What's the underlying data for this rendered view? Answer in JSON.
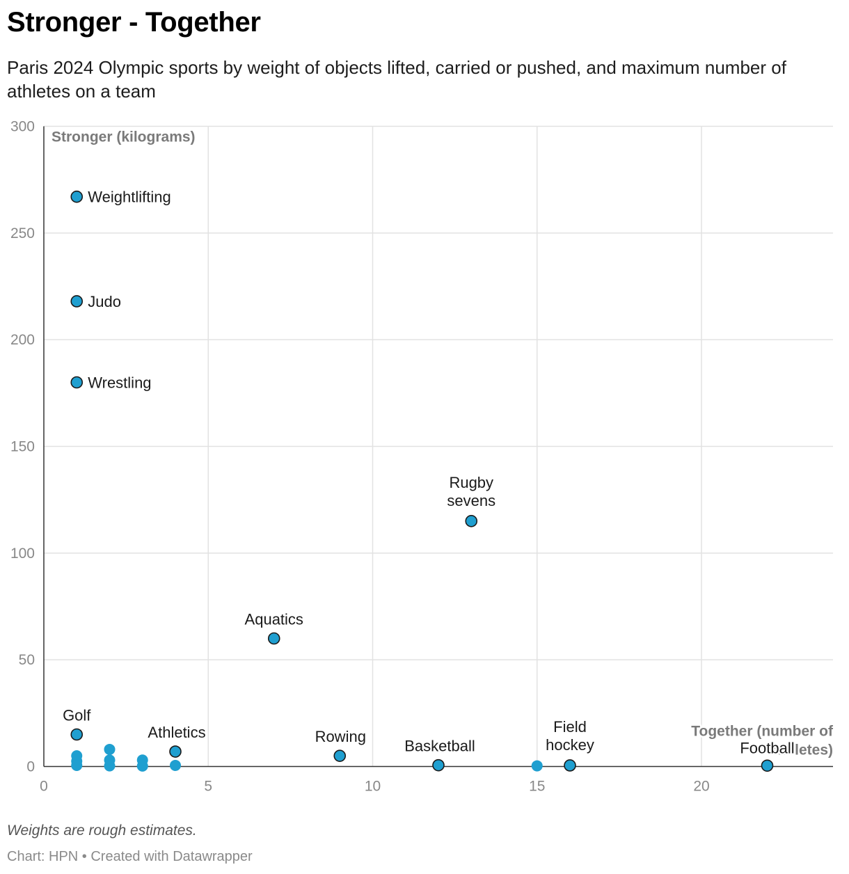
{
  "title": "Stronger - Together",
  "subtitle": "Paris 2024 Olympic sports by weight of objects lifted, carried or pushed, and maximum number of athletes on a team",
  "note": "Weights are rough estimates.",
  "credit": "Chart: HPN • Created with Datawrapper",
  "colors": {
    "point": "#1f9fd0",
    "outline": "#1a1a1a",
    "grid": "#e2e2e2",
    "axis": "#333333"
  },
  "chart_data": {
    "type": "scatter",
    "title": "Stronger - Together",
    "xlabel": "Together (number of athletes)",
    "ylabel": "Stronger (kilograms)",
    "xlim": [
      0,
      24
    ],
    "ylim": [
      0,
      300
    ],
    "x_ticks": [
      0,
      5,
      10,
      15,
      20
    ],
    "y_ticks": [
      0,
      50,
      100,
      150,
      200,
      250,
      300
    ],
    "points": [
      {
        "x": 1,
        "y": 267,
        "label": "Weightlifting",
        "outlined": true
      },
      {
        "x": 1,
        "y": 218,
        "label": "Judo",
        "outlined": true
      },
      {
        "x": 1,
        "y": 180,
        "label": "Wrestling",
        "outlined": true
      },
      {
        "x": 13,
        "y": 115,
        "label": "Rugby sevens",
        "outlined": true
      },
      {
        "x": 7,
        "y": 60,
        "label": "Aquatics",
        "outlined": true
      },
      {
        "x": 1,
        "y": 15,
        "label": "Golf",
        "outlined": true
      },
      {
        "x": 4,
        "y": 7,
        "label": "Athletics",
        "outlined": true
      },
      {
        "x": 9,
        "y": 5,
        "label": "Rowing",
        "outlined": true
      },
      {
        "x": 12,
        "y": 0.6,
        "label": "Basketball",
        "outlined": true
      },
      {
        "x": 16,
        "y": 0.5,
        "label": "Field hockey",
        "outlined": true
      },
      {
        "x": 22,
        "y": 0.4,
        "label": "Football",
        "outlined": true
      },
      {
        "x": 15,
        "y": 0.3,
        "label": "",
        "outlined": false
      },
      {
        "x": 1,
        "y": 5,
        "label": "",
        "outlined": false
      },
      {
        "x": 1,
        "y": 2.5,
        "label": "",
        "outlined": false
      },
      {
        "x": 1,
        "y": 0.5,
        "label": "",
        "outlined": false
      },
      {
        "x": 2,
        "y": 8,
        "label": "",
        "outlined": false
      },
      {
        "x": 2,
        "y": 3,
        "label": "",
        "outlined": false
      },
      {
        "x": 2,
        "y": 0.3,
        "label": "",
        "outlined": false
      },
      {
        "x": 3,
        "y": 3,
        "label": "",
        "outlined": false
      },
      {
        "x": 3,
        "y": 0.2,
        "label": "",
        "outlined": false
      },
      {
        "x": 4,
        "y": 0.5,
        "label": "",
        "outlined": false
      }
    ]
  }
}
